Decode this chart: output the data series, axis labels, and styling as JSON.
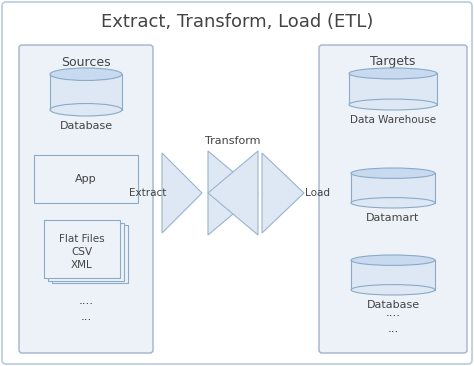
{
  "title": "Extract, Transform, Load (ETL)",
  "title_fontsize": 13,
  "background_color": "#ffffff",
  "outer_box_color": "#b8cce0",
  "outer_box_fill": "#ffffff",
  "panel_fill": "#edf2f8",
  "panel_edge": "#a0b4cc",
  "cylinder_face": "#dde8f4",
  "cylinder_top": "#c8daf0",
  "cylinder_edge": "#8aaac8",
  "rect_fill": "#edf2f8",
  "rect_edge": "#8aaac8",
  "file_fill": "#edf2f8",
  "file_edge": "#8aaac8",
  "arrow_fill": "#dde8f4",
  "arrow_edge": "#9ab4cc",
  "text_color": "#444444",
  "sources_label": "Sources",
  "targets_label": "Targets",
  "extract_label": "Extract",
  "transform_label": "Transform",
  "load_label": "Load",
  "src_db_label": "Database",
  "src_app_label": "App",
  "src_ff_label": "Flat Files\nCSV\nXML",
  "src_dots1": "....",
  "src_dots2": "...",
  "tgt_dw_label": "Data Warehouse",
  "tgt_dm_label": "Datamart",
  "tgt_db_label": "Database",
  "tgt_dots1": "....",
  "tgt_dots2": "..."
}
